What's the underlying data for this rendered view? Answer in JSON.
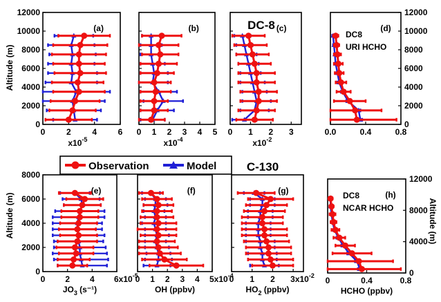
{
  "chart_data": {
    "type": "line",
    "colors": {
      "observation": "#ee1111",
      "model": "#1f1fd6",
      "axis": "#000000"
    },
    "legend": {
      "placement": "center, between the two rows",
      "observation_label": "Observation",
      "model_label": "Model"
    },
    "row_titles": {
      "top": "DC-8",
      "bottom": "C-130"
    },
    "top_left_ylabel": "Altitude (m)",
    "bottom_left_ylabel": "Altitude (m)",
    "bottom_right_ylabel": "Altitude (m)",
    "panels": [
      {
        "id": "a",
        "label": "(a)",
        "row": "top",
        "xlim": [
          0,
          6
        ],
        "xticks": [
          "0",
          "2",
          "4",
          "6"
        ],
        "xmult": "x10",
        "xmult_exp": "-5",
        "xlabel": "",
        "xlabel_sub": "",
        "xlabel_unit": "",
        "ylim": [
          0,
          12000
        ],
        "yticks": [
          "0",
          "2000",
          "4000",
          "6000",
          "8000",
          "10000",
          "12000"
        ],
        "ytick_values": [
          0,
          2000,
          4000,
          6000,
          8000,
          10000,
          12000
        ],
        "yaxis": "left",
        "yticks_labeled": true,
        "altitudes": [
          500,
          1500,
          2500,
          3500,
          4500,
          5500,
          6500,
          7500,
          8500,
          9500
        ],
        "observation": {
          "mean": [
            2.0,
            2.3,
            2.5,
            2.8,
            2.7,
            2.9,
            2.8,
            2.8,
            2.9,
            3.2
          ],
          "err": [
            1.8,
            1.8,
            1.9,
            2.0,
            2.0,
            2.0,
            2.0,
            2.1,
            2.1,
            2.0
          ]
        },
        "model": {
          "mean": [
            2.5,
            2.4,
            2.3,
            2.6,
            2.2,
            2.3,
            2.2,
            2.3,
            2.2,
            2.4
          ],
          "err": [
            1.7,
            2.1,
            2.5,
            2.6,
            2.0,
            1.9,
            1.8,
            1.8,
            1.8,
            1.5
          ]
        },
        "annotations": []
      },
      {
        "id": "b",
        "label": "(b)",
        "row": "top",
        "xlim": [
          0,
          5
        ],
        "xticks": [
          "0",
          "1",
          "2",
          "3",
          "4",
          "5"
        ],
        "xmult": "x10",
        "xmult_exp": "-4",
        "xlabel": "",
        "xlabel_sub": "",
        "xlabel_unit": "",
        "ylim": [
          0,
          12000
        ],
        "yticks": [
          "0",
          "2000",
          "4000",
          "6000",
          "8000",
          "10000",
          "12000"
        ],
        "ytick_values": [
          0,
          2000,
          4000,
          6000,
          8000,
          10000,
          12000
        ],
        "yaxis": "left",
        "yticks_labeled": false,
        "altitudes": [
          500,
          1500,
          2500,
          3500,
          4500,
          5500,
          6500,
          7500,
          8500,
          9500
        ],
        "observation": {
          "mean": [
            0.8,
            1.0,
            1.0,
            1.1,
            1.0,
            1.2,
            1.3,
            1.4,
            1.3,
            1.5
          ],
          "err": [
            0.9,
            0.9,
            0.9,
            1.0,
            1.1,
            1.1,
            1.2,
            1.2,
            1.3,
            1.3
          ]
        },
        "model": {
          "mean": [
            0.9,
            1.2,
            1.6,
            1.3,
            0.9,
            1.0,
            0.9,
            0.8,
            0.8,
            0.8
          ],
          "err": [
            0.8,
            1.1,
            1.3,
            1.2,
            1.0,
            0.9,
            0.8,
            0.7,
            0.7,
            0.6
          ]
        },
        "annotations": []
      },
      {
        "id": "c",
        "label": "(c)",
        "row": "top",
        "xlim": [
          0,
          3.5
        ],
        "xticks": [
          "0",
          "1",
          "2",
          "3"
        ],
        "xmult": "x10",
        "xmult_exp": "-2",
        "xlabel": "",
        "xlabel_sub": "",
        "xlabel_unit": "",
        "ylim": [
          0,
          12000
        ],
        "yticks": [
          "0",
          "2000",
          "4000",
          "6000",
          "8000",
          "10000",
          "12000"
        ],
        "ytick_values": [
          0,
          2000,
          4000,
          6000,
          8000,
          10000,
          12000
        ],
        "yaxis": "left",
        "yticks_labeled": false,
        "altitudes": [
          500,
          1500,
          2500,
          3500,
          4500,
          5500,
          6500,
          7500,
          8500,
          9500
        ],
        "observation": {
          "mean": [
            1.2,
            1.3,
            1.4,
            1.4,
            1.3,
            1.3,
            1.2,
            1.1,
            1.0,
            0.9
          ],
          "err": [
            0.9,
            0.9,
            0.9,
            0.9,
            0.9,
            0.9,
            0.8,
            0.8,
            0.8,
            0.8
          ]
        },
        "model": {
          "mean": [
            0.7,
            1.2,
            1.3,
            1.2,
            1.1,
            1.0,
            0.9,
            0.8,
            0.7,
            0.6
          ],
          "err": [
            0.6,
            0.7,
            0.7,
            0.6,
            0.6,
            0.5,
            0.5,
            0.5,
            0.4,
            0.4
          ]
        },
        "annotations": []
      },
      {
        "id": "d",
        "label": "(d)",
        "row": "top",
        "xlim": [
          0,
          0.8
        ],
        "xticks": [
          "0.0",
          "0.4",
          "0.8"
        ],
        "xmult": "",
        "xmult_exp": "",
        "xlabel": "",
        "xlabel_sub": "",
        "xlabel_unit": "",
        "ylim": [
          0,
          12000
        ],
        "yticks": [
          "0",
          "2000",
          "4000",
          "6000",
          "8000",
          "10000",
          "12000"
        ],
        "ytick_values": [
          0,
          2000,
          4000,
          6000,
          8000,
          10000,
          12000
        ],
        "yaxis": "right",
        "yticks_labeled": true,
        "altitudes": [
          500,
          1500,
          2500,
          3500,
          4500,
          5500,
          6500,
          7500,
          8500,
          9500
        ],
        "observation": {
          "mean": [
            0.3,
            0.28,
            0.22,
            0.15,
            0.12,
            0.1,
            0.09,
            0.08,
            0.07,
            0.06
          ],
          "err": [
            0.45,
            0.3,
            0.18,
            0.08,
            0.06,
            0.05,
            0.05,
            0.04,
            0.03,
            0.03
          ]
        },
        "model": {
          "mean": [
            0.34,
            0.32,
            0.2,
            0.14,
            0.1,
            0.08,
            0.06,
            0.05,
            0.04,
            0.03
          ],
          "err": [
            0.02,
            0.02,
            0.02,
            0.02,
            0.02,
            0.01,
            0.01,
            0.01,
            0.01,
            0.01
          ]
        },
        "annotations": [
          "DC8",
          "URI HCHO"
        ]
      },
      {
        "id": "e",
        "label": "(e)",
        "row": "bottom",
        "xlim": [
          0,
          6
        ],
        "xticks": [
          "0",
          "2",
          "4",
          "6x10"
        ],
        "xmult": "",
        "xmult_exp": "-5",
        "xlabel": "JO",
        "xlabel_sub": "3",
        "xlabel_unit": " (s⁻¹)",
        "ylim": [
          0,
          8000
        ],
        "yticks": [
          "0",
          "2000",
          "4000",
          "6000",
          "8000"
        ],
        "ytick_values": [
          0,
          2000,
          4000,
          6000,
          8000
        ],
        "yaxis": "left",
        "yticks_labeled": true,
        "altitudes": [
          500,
          1000,
          1500,
          2000,
          2500,
          3000,
          3500,
          4000,
          4500,
          5000,
          5500,
          6000,
          6500
        ],
        "observation": {
          "mean": [
            2.4,
            2.5,
            2.7,
            2.6,
            2.8,
            2.9,
            2.8,
            2.9,
            3.0,
            3.0,
            3.2,
            3.4,
            2.6
          ],
          "err": [
            1.2,
            1.3,
            1.4,
            1.5,
            1.6,
            1.5,
            1.5,
            1.5,
            1.5,
            1.5,
            1.5,
            1.5,
            1.3
          ]
        },
        "model": {
          "mean": [
            3.2,
            3.1,
            3.0,
            3.0,
            2.9,
            2.9,
            2.8,
            2.8,
            2.9,
            3.0,
            3.2,
            3.1,
            2.6
          ],
          "err": [
            2.0,
            2.2,
            2.2,
            2.1,
            2.0,
            2.1,
            2.0,
            2.0,
            2.1,
            2.0,
            1.5,
            1.5,
            1.2
          ]
        },
        "annotations": []
      },
      {
        "id": "f",
        "label": "(f)",
        "row": "bottom",
        "xlim": [
          0,
          5
        ],
        "xticks": [
          "0",
          "1",
          "2",
          "3",
          "4",
          "5x10"
        ],
        "xmult": "",
        "xmult_exp": "-4",
        "xlabel": "OH (ppbv)",
        "xlabel_sub": "",
        "xlabel_unit": "",
        "ylim": [
          0,
          8000
        ],
        "yticks": [
          "0",
          "2000",
          "4000",
          "6000",
          "8000"
        ],
        "ytick_values": [
          0,
          2000,
          4000,
          6000,
          8000
        ],
        "yaxis": "left",
        "yticks_labeled": false,
        "altitudes": [
          500,
          1000,
          1500,
          2000,
          2500,
          3000,
          3500,
          4000,
          4500,
          5000,
          5500,
          6000,
          6500
        ],
        "observation": {
          "mean": [
            2.6,
            1.8,
            1.5,
            1.4,
            1.3,
            1.4,
            1.3,
            1.4,
            1.3,
            1.3,
            1.4,
            1.3,
            0.9
          ],
          "err": [
            1.8,
            1.5,
            1.4,
            1.3,
            1.2,
            1.2,
            1.3,
            1.2,
            1.1,
            1.0,
            1.0,
            1.0,
            0.8
          ]
        },
        "model": {
          "mean": [
            1.3,
            1.4,
            1.4,
            1.3,
            1.2,
            1.3,
            1.2,
            1.1,
            1.2,
            1.1,
            1.2,
            1.2,
            0.9
          ],
          "err": [
            0.9,
            0.9,
            0.8,
            0.8,
            0.7,
            0.8,
            0.7,
            0.8,
            0.7,
            0.7,
            0.8,
            0.7,
            0.6
          ]
        },
        "annotations": []
      },
      {
        "id": "g",
        "label": "(g)",
        "row": "bottom",
        "xlim": [
          0,
          3.5
        ],
        "xticks": [
          "0",
          "1",
          "2",
          "3x10"
        ],
        "xmult": "",
        "xmult_exp": "-2",
        "xlabel": "HO",
        "xlabel_sub": "2",
        "xlabel_unit": " (ppbv)",
        "ylim": [
          0,
          8000
        ],
        "yticks": [
          "0",
          "2000",
          "4000",
          "6000",
          "8000"
        ],
        "ytick_values": [
          0,
          2000,
          4000,
          6000,
          8000
        ],
        "yaxis": "left",
        "yticks_labeled": false,
        "altitudes": [
          500,
          1000,
          1500,
          2000,
          2500,
          3000,
          3500,
          4000,
          4500,
          5000,
          5500,
          6000,
          6500
        ],
        "observation": {
          "mean": [
            2.0,
            1.9,
            1.8,
            1.8,
            1.7,
            1.6,
            1.6,
            1.5,
            1.5,
            1.6,
            1.7,
            1.9,
            1.2
          ],
          "err": [
            1.0,
            1.1,
            1.1,
            1.1,
            1.1,
            1.1,
            1.1,
            1.0,
            1.0,
            1.0,
            1.0,
            1.1,
            0.9
          ]
        },
        "model": {
          "mean": [
            1.6,
            1.5,
            1.5,
            1.4,
            1.4,
            1.3,
            1.3,
            1.3,
            1.4,
            1.4,
            1.5,
            1.5,
            1.1
          ],
          "err": [
            0.7,
            0.7,
            0.7,
            0.7,
            0.7,
            0.6,
            0.6,
            0.6,
            0.6,
            0.6,
            0.6,
            0.6,
            0.5
          ]
        },
        "annotations": []
      },
      {
        "id": "h",
        "label": "(h)",
        "row": "bottom",
        "xlim": [
          0,
          0.8
        ],
        "xticks": [
          "0",
          "0.4",
          "0.8"
        ],
        "xmult": "",
        "xmult_exp": "",
        "xlabel": "HCHO (ppbv)",
        "xlabel_sub": "",
        "xlabel_unit": "",
        "ylim": [
          0,
          12000
        ],
        "yticks": [
          "0",
          "4000",
          "8000",
          "12000"
        ],
        "ytick_values": [
          0,
          4000,
          8000,
          12000
        ],
        "yaxis": "right",
        "yticks_labeled": true,
        "altitudes": [
          500,
          1500,
          2500,
          3500,
          4500,
          5500,
          6500,
          7500,
          8500,
          9500
        ],
        "observation": {
          "mean": [
            0.35,
            0.32,
            0.25,
            0.18,
            0.12,
            0.08,
            0.06,
            0.05,
            0.04,
            0.03
          ],
          "err": [
            0.4,
            0.35,
            0.2,
            0.1,
            0.06,
            0.04,
            0.03,
            0.03,
            0.02,
            0.02
          ]
        },
        "model": {
          "mean": [
            0.33,
            0.3,
            0.22,
            0.16,
            0.11,
            0.07,
            0.05,
            0.04,
            0.03,
            0.03
          ],
          "err": [
            0.02,
            0.02,
            0.02,
            0.02,
            0.02,
            0.01,
            0.01,
            0.01,
            0.01,
            0.01
          ]
        },
        "annotations": [
          "DC8",
          "NCAR HCHO"
        ]
      }
    ]
  }
}
